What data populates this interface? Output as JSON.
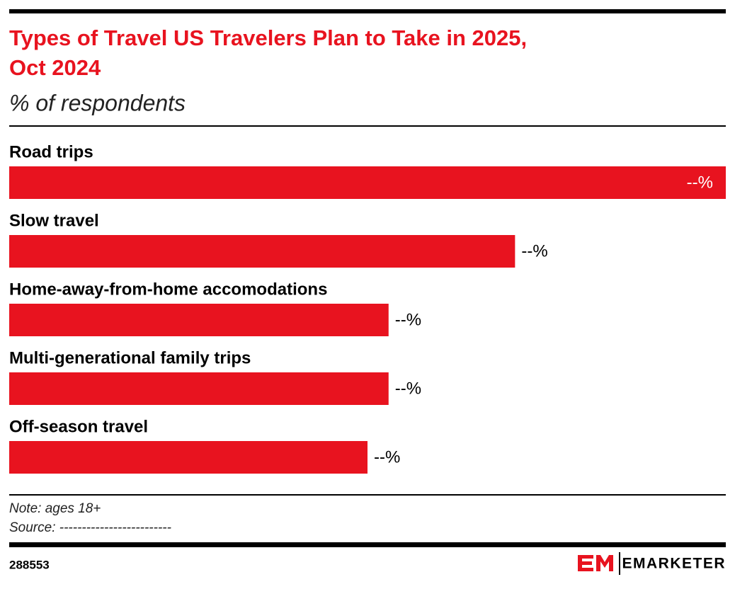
{
  "chart_data": {
    "type": "bar",
    "orientation": "horizontal",
    "title": "Types of Travel US Travelers Plan to Take in 2025, Oct 2024",
    "subtitle": "% of respondents",
    "categories": [
      "Road trips",
      "Slow travel",
      "Home-away-from-home accomodations",
      "Multi-generational family trips",
      "Off-season travel"
    ],
    "values": [
      34,
      24,
      18,
      18,
      17
    ],
    "value_labels": [
      "--%",
      "--%",
      "--%",
      "--%",
      "--%"
    ],
    "color": "#e8131f",
    "note": "Note: ages 18+",
    "source": "Source: -------------------------",
    "chart_id": "288553",
    "brand": "EMARKETER"
  }
}
